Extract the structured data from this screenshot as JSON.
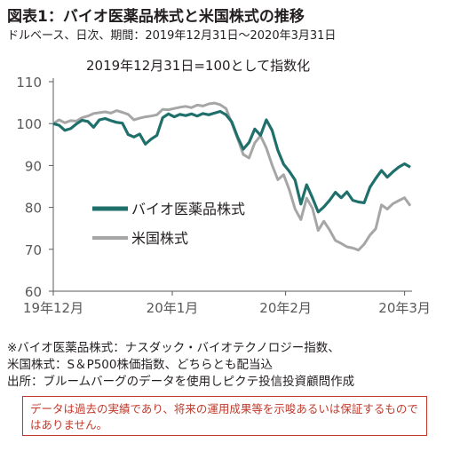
{
  "header": {
    "title": "図表1：バイオ医薬品株式と米国株式の推移",
    "subtitle": "ドルベース、日次、期間：2019年12月31日～2020年3月31日"
  },
  "chart_data": {
    "type": "line",
    "annotation": "2019年12月31日=100として指数化",
    "ylim": [
      60,
      110
    ],
    "yticks": [
      60,
      70,
      80,
      90,
      100,
      110
    ],
    "xlim": [
      0,
      63
    ],
    "xticks": [
      {
        "label": "19年12月",
        "pos": 0
      },
      {
        "label": "20年1月",
        "pos": 21
      },
      {
        "label": "20年2月",
        "pos": 41
      },
      {
        "label": "20年3月",
        "pos": 62
      }
    ],
    "grid": false,
    "legend_position": "center-left",
    "series": [
      {
        "name": "バイオ医薬品株式",
        "color": "#1f6f6b",
        "values": [
          100,
          99.6,
          98.4,
          98.8,
          99.9,
          100.8,
          100.5,
          99.1,
          100.9,
          101.2,
          100.7,
          100.3,
          100.1,
          97.4,
          96.8,
          97.5,
          95.1,
          96.3,
          97.2,
          101.4,
          102.3,
          101.6,
          102.2,
          101.9,
          102.3,
          101.8,
          102.4,
          102.1,
          102.5,
          102.9,
          102.1,
          100.4,
          96.8,
          93.9,
          95.5,
          98.7,
          97.2,
          100.9,
          98.4,
          93.6,
          90.3,
          88.6,
          86.5,
          80.8,
          85.4,
          82.3,
          78.9,
          80.1,
          81.7,
          83.6,
          82.3,
          83.7,
          81.7,
          81.3,
          81.1,
          84.8,
          86.9,
          88.8,
          87.2,
          88.5,
          89.6,
          90.4,
          89.6
        ]
      },
      {
        "name": "米国株式",
        "color": "#a6a6a6",
        "values": [
          100,
          100.9,
          100.2,
          100.7,
          100.6,
          101.4,
          101.8,
          102.4,
          102.6,
          102.8,
          102.5,
          103.1,
          102.7,
          102.2,
          100.9,
          101.3,
          101.6,
          101.8,
          102.1,
          103.4,
          103.3,
          103.6,
          103.9,
          104.1,
          103.8,
          104.4,
          104.2,
          104.7,
          104.9,
          104.5,
          103.6,
          100.1,
          96.5,
          92.6,
          91.8,
          95.4,
          97.1,
          94.2,
          90.1,
          86.6,
          87.8,
          84.2,
          79.6,
          77.1,
          82.2,
          79.8,
          74.5,
          76.7,
          74.6,
          72.1,
          71.4,
          70.6,
          70.3,
          69.8,
          71.2,
          73.4,
          74.9,
          80.6,
          79.6,
          80.9,
          81.6,
          82.3,
          80.4
        ]
      }
    ]
  },
  "footnotes": {
    "line1": "※バイオ医薬品株式：ナスダック・バイオテクノロジー指数、",
    "line2": "米国株式：S＆P500株価指数、どちらとも配当込",
    "line3": "出所：ブルームバーグのデータを使用しピクテ投信投資顧問作成"
  },
  "disclaimer": "データは過去の実績であり、将来の運用成果等を示唆あるいは保証するものではありません。"
}
